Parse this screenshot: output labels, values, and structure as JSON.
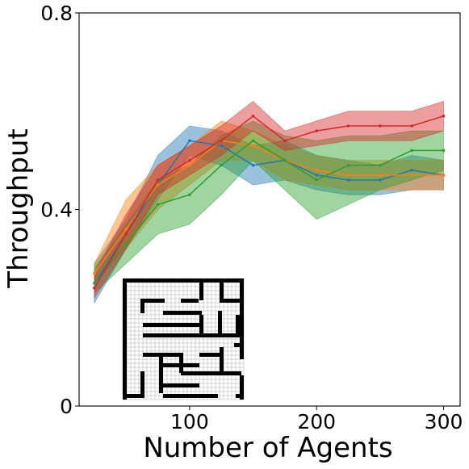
{
  "chart_data": {
    "type": "line",
    "title": "",
    "xlabel": "Number of Agents",
    "ylabel": "Throughput",
    "xlim": [
      13,
      313
    ],
    "ylim": [
      0,
      0.8
    ],
    "xticks": [
      100,
      200,
      300
    ],
    "xtick_labels": [
      "100",
      "200",
      "300"
    ],
    "yticks": [
      0,
      0.4,
      0.8
    ],
    "ytick_labels": [
      "0",
      "0.4",
      "0.8"
    ],
    "grid": false,
    "legend": "none",
    "x": [
      25,
      50,
      75,
      100,
      125,
      150,
      175,
      200,
      225,
      250,
      275,
      300
    ],
    "series": [
      {
        "color": "#1f77b4",
        "values": [
          0.25,
          0.35,
          0.45,
          0.54,
          0.53,
          0.49,
          0.5,
          0.47,
          0.46,
          0.46,
          0.48,
          0.47
        ],
        "lower": [
          0.21,
          0.32,
          0.42,
          0.51,
          0.49,
          0.45,
          0.46,
          0.44,
          0.43,
          0.43,
          0.44,
          0.44
        ],
        "upper": [
          0.29,
          0.38,
          0.51,
          0.57,
          0.56,
          0.53,
          0.54,
          0.51,
          0.5,
          0.49,
          0.51,
          0.5
        ]
      },
      {
        "color": "#ff7f0e",
        "values": [
          0.27,
          0.36,
          0.45,
          0.49,
          0.54,
          0.53,
          0.5,
          0.48,
          0.47,
          0.47,
          0.47,
          0.47
        ],
        "lower": [
          0.25,
          0.32,
          0.4,
          0.45,
          0.5,
          0.5,
          0.46,
          0.45,
          0.44,
          0.44,
          0.44,
          0.44
        ],
        "upper": [
          0.29,
          0.42,
          0.49,
          0.53,
          0.58,
          0.56,
          0.53,
          0.51,
          0.5,
          0.5,
          0.5,
          0.5
        ]
      },
      {
        "color": "#2ca02c",
        "values": [
          0.25,
          0.33,
          0.41,
          0.43,
          0.49,
          0.54,
          0.5,
          0.46,
          0.49,
          0.49,
          0.52,
          0.52
        ],
        "lower": [
          0.23,
          0.29,
          0.35,
          0.37,
          0.43,
          0.5,
          0.44,
          0.38,
          0.41,
          0.44,
          0.46,
          0.48
        ],
        "upper": [
          0.28,
          0.37,
          0.46,
          0.49,
          0.55,
          0.58,
          0.55,
          0.54,
          0.55,
          0.55,
          0.56,
          0.56
        ]
      },
      {
        "color": "#d62728",
        "values": [
          0.24,
          0.35,
          0.46,
          0.5,
          0.54,
          0.59,
          0.54,
          0.56,
          0.57,
          0.57,
          0.57,
          0.59
        ],
        "lower": [
          0.22,
          0.32,
          0.43,
          0.47,
          0.51,
          0.56,
          0.52,
          0.53,
          0.54,
          0.54,
          0.54,
          0.56
        ],
        "upper": [
          0.27,
          0.39,
          0.49,
          0.53,
          0.57,
          0.62,
          0.56,
          0.58,
          0.6,
          0.6,
          0.6,
          0.62
        ]
      }
    ]
  }
}
